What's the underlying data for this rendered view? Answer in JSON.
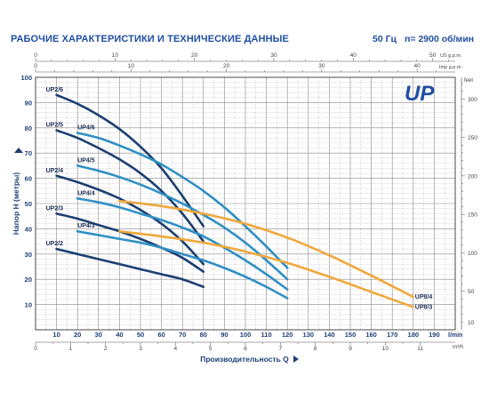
{
  "header": {
    "title": "РАБОЧИЕ ХАРАКТЕРИСТИКИ И ТЕХНИЧЕСКИЕ ДАННЫЕ",
    "frequency": "50 Гц",
    "speed": "n= 2900 об/мин"
  },
  "logo": {
    "text": "UP",
    "color": "#1f4fa1"
  },
  "chart_data": {
    "type": "line",
    "title": "",
    "xlabel": "Производительность Q",
    "ylabel": "Напор H (метры)",
    "xlim": [
      0,
      200
    ],
    "ylim": [
      0,
      100
    ],
    "x_unit": "l/min",
    "grid": true,
    "primary_x_ticks": [
      "10",
      "20",
      "30",
      "40",
      "50",
      "60",
      "70",
      "80",
      "90",
      "100",
      "110",
      "120",
      "130",
      "140",
      "150",
      "160",
      "170",
      "180",
      "190"
    ],
    "primary_y_ticks": [
      "10",
      "20",
      "30",
      "40",
      "50",
      "60",
      "70",
      "80",
      "90",
      "100"
    ],
    "secondary_axes": {
      "bottom": {
        "unit": "m³/h",
        "ticks": [
          "0",
          "1",
          "2",
          "3",
          "4",
          "5",
          "6",
          "7",
          "8",
          "9",
          "10",
          "11"
        ]
      },
      "top_us_gpm": {
        "unit": "US g.p.m.",
        "ticks": [
          "0",
          "10",
          "20",
          "30",
          "40",
          "50"
        ]
      },
      "top_imp_gpm": {
        "unit": "Imp g.p.m.",
        "ticks": [
          "0",
          "10",
          "20",
          "30",
          "40"
        ]
      },
      "right_feet": {
        "unit": "feet",
        "ticks": [
          "10",
          "50",
          "100",
          "150",
          "200",
          "250",
          "300"
        ]
      }
    },
    "series": [
      {
        "name": "UP2/2",
        "color": "#1c3f73",
        "points": [
          [
            10,
            32
          ],
          [
            20,
            30
          ],
          [
            30,
            28
          ],
          [
            40,
            26
          ],
          [
            50,
            24
          ],
          [
            60,
            22
          ],
          [
            70,
            20
          ],
          [
            80,
            17
          ]
        ]
      },
      {
        "name": "UP2/3",
        "color": "#1c3f73",
        "points": [
          [
            10,
            46
          ],
          [
            20,
            44
          ],
          [
            30,
            41.5
          ],
          [
            40,
            39
          ],
          [
            50,
            36
          ],
          [
            60,
            32.5
          ],
          [
            70,
            28.5
          ],
          [
            80,
            23
          ]
        ]
      },
      {
        "name": "UP2/4",
        "color": "#1c3f73",
        "points": [
          [
            10,
            61
          ],
          [
            20,
            58.5
          ],
          [
            30,
            55.5
          ],
          [
            40,
            52
          ],
          [
            50,
            47.5
          ],
          [
            60,
            42
          ],
          [
            70,
            35
          ],
          [
            80,
            26
          ]
        ]
      },
      {
        "name": "UP2/5",
        "color": "#1c3f73",
        "points": [
          [
            10,
            79
          ],
          [
            20,
            76
          ],
          [
            30,
            72
          ],
          [
            40,
            67.5
          ],
          [
            50,
            62
          ],
          [
            60,
            55
          ],
          [
            70,
            46
          ],
          [
            80,
            35
          ]
        ]
      },
      {
        "name": "UP2/6",
        "color": "#1c3f73",
        "points": [
          [
            10,
            93
          ],
          [
            20,
            89.5
          ],
          [
            30,
            85
          ],
          [
            40,
            79.5
          ],
          [
            50,
            72.5
          ],
          [
            60,
            64
          ],
          [
            70,
            53
          ],
          [
            80,
            41
          ]
        ]
      },
      {
        "name": "UP4/3",
        "color": "#2f8fc4",
        "points": [
          [
            20,
            39
          ],
          [
            30,
            37.5
          ],
          [
            40,
            36
          ],
          [
            50,
            34.5
          ],
          [
            60,
            32.5
          ],
          [
            70,
            30
          ],
          [
            80,
            27.5
          ],
          [
            90,
            24.5
          ],
          [
            100,
            21
          ],
          [
            110,
            17
          ],
          [
            120,
            12.5
          ]
        ]
      },
      {
        "name": "UP4/4",
        "color": "#2f8fc4",
        "points": [
          [
            20,
            52
          ],
          [
            30,
            50.5
          ],
          [
            40,
            48.5
          ],
          [
            50,
            46
          ],
          [
            60,
            43.5
          ],
          [
            70,
            40.5
          ],
          [
            80,
            37
          ],
          [
            90,
            32.5
          ],
          [
            100,
            27.5
          ],
          [
            110,
            22
          ],
          [
            120,
            16
          ]
        ]
      },
      {
        "name": "UP4/5",
        "color": "#2f8fc4",
        "points": [
          [
            20,
            65
          ],
          [
            30,
            63
          ],
          [
            40,
            60.5
          ],
          [
            50,
            57.5
          ],
          [
            60,
            54
          ],
          [
            70,
            50
          ],
          [
            80,
            45.5
          ],
          [
            90,
            40.5
          ],
          [
            100,
            34.5
          ],
          [
            110,
            27.5
          ],
          [
            120,
            20
          ]
        ]
      },
      {
        "name": "UP4/6",
        "color": "#2f8fc4",
        "points": [
          [
            20,
            78
          ],
          [
            30,
            76
          ],
          [
            40,
            73
          ],
          [
            50,
            69.5
          ],
          [
            60,
            65.5
          ],
          [
            70,
            60.5
          ],
          [
            80,
            55
          ],
          [
            90,
            48.5
          ],
          [
            100,
            41
          ],
          [
            110,
            33
          ],
          [
            120,
            24.5
          ]
        ]
      },
      {
        "name": "UP8/3",
        "color": "#f0a83c",
        "points": [
          [
            40,
            39
          ],
          [
            60,
            37
          ],
          [
            80,
            34.5
          ],
          [
            100,
            31
          ],
          [
            120,
            26.5
          ],
          [
            140,
            21
          ],
          [
            160,
            15
          ],
          [
            180,
            9
          ]
        ]
      },
      {
        "name": "UP8/4",
        "color": "#f0a83c",
        "points": [
          [
            40,
            51
          ],
          [
            60,
            49
          ],
          [
            80,
            46
          ],
          [
            100,
            42
          ],
          [
            120,
            36.5
          ],
          [
            140,
            29.5
          ],
          [
            160,
            21.5
          ],
          [
            180,
            13
          ]
        ]
      }
    ]
  }
}
